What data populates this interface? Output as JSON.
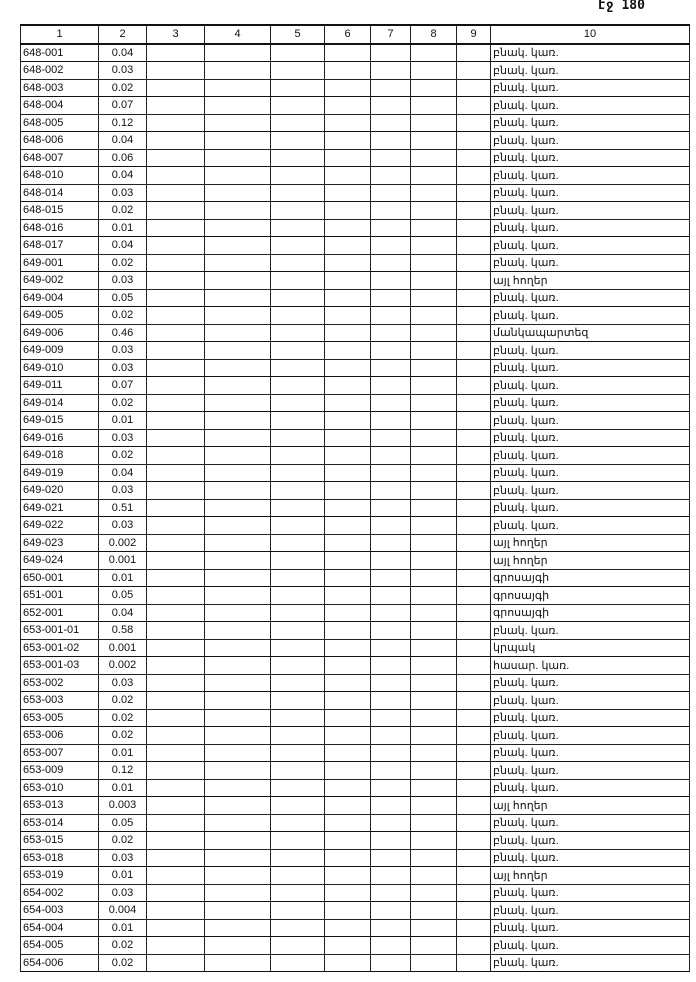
{
  "page_number": "էջ 180",
  "columns": [
    "1",
    "2",
    "3",
    "4",
    "5",
    "6",
    "7",
    "8",
    "9",
    "10"
  ],
  "rows": [
    [
      "648-001",
      "0.04",
      "բնակ. կառ."
    ],
    [
      "648-002",
      "0.03",
      "բնակ. կառ."
    ],
    [
      "648-003",
      "0.02",
      "բնակ. կառ."
    ],
    [
      "648-004",
      "0.07",
      "բնակ. կառ."
    ],
    [
      "648-005",
      "0.12",
      "բնակ. կառ."
    ],
    [
      "648-006",
      "0.04",
      "բնակ. կառ."
    ],
    [
      "648-007",
      "0.06",
      "բնակ. կառ."
    ],
    [
      "648-010",
      "0.04",
      "բնակ. կառ."
    ],
    [
      "648-014",
      "0.03",
      "բնակ. կառ."
    ],
    [
      "648-015",
      "0.02",
      "բնակ. կառ."
    ],
    [
      "648-016",
      "0.01",
      "բնակ. կառ."
    ],
    [
      "648-017",
      "0.04",
      "բնակ. կառ."
    ],
    [
      "649-001",
      "0.02",
      "բնակ. կառ."
    ],
    [
      "649-002",
      "0.03",
      "այլ հողեր"
    ],
    [
      "649-004",
      "0.05",
      "բնակ. կառ."
    ],
    [
      "649-005",
      "0.02",
      "բնակ. կառ."
    ],
    [
      "649-006",
      "0.46",
      "մանկապարտեզ"
    ],
    [
      "649-009",
      "0.03",
      "բնակ. կառ."
    ],
    [
      "649-010",
      "0.03",
      "բնակ. կառ."
    ],
    [
      "649-011",
      "0.07",
      "բնակ. կառ."
    ],
    [
      "649-014",
      "0.02",
      "բնակ. կառ."
    ],
    [
      "649-015",
      "0.01",
      "բնակ. կառ."
    ],
    [
      "649-016",
      "0.03",
      "բնակ. կառ."
    ],
    [
      "649-018",
      "0.02",
      "բնակ. կառ."
    ],
    [
      "649-019",
      "0.04",
      "բնակ. կառ."
    ],
    [
      "649-020",
      "0.03",
      "բնակ. կառ."
    ],
    [
      "649-021",
      "0.51",
      "բնակ. կառ."
    ],
    [
      "649-022",
      "0.03",
      "բնակ. կառ."
    ],
    [
      "649-023",
      "0.002",
      "այլ հողեր"
    ],
    [
      "649-024",
      "0.001",
      "այլ հողեր"
    ],
    [
      "650-001",
      "0.01",
      "գրոսայգի"
    ],
    [
      "651-001",
      "0.05",
      "գրոսայգի"
    ],
    [
      "652-001",
      "0.04",
      "գրոսայգի"
    ],
    [
      "653-001-01",
      "0.58",
      "բնակ. կառ."
    ],
    [
      "653-001-02",
      "0.001",
      "կրպակ"
    ],
    [
      "653-001-03",
      "0.002",
      "հասար. կառ."
    ],
    [
      "653-002",
      "0.03",
      "բնակ. կառ."
    ],
    [
      "653-003",
      "0.02",
      "բնակ. կառ."
    ],
    [
      "653-005",
      "0.02",
      "բնակ. կառ."
    ],
    [
      "653-006",
      "0.02",
      "բնակ. կառ."
    ],
    [
      "653-007",
      "0.01",
      "բնակ. կառ."
    ],
    [
      "653-009",
      "0.12",
      "բնակ. կառ."
    ],
    [
      "653-010",
      "0.01",
      "բնակ. կառ."
    ],
    [
      "653-013",
      "0.003",
      "այլ հողեր"
    ],
    [
      "653-014",
      "0.05",
      "բնակ. կառ."
    ],
    [
      "653-015",
      "0.02",
      "բնակ. կառ."
    ],
    [
      "653-018",
      "0.03",
      "բնակ. կառ."
    ],
    [
      "653-019",
      "0.01",
      "այլ հողեր"
    ],
    [
      "654-002",
      "0.03",
      "բնակ. կառ."
    ],
    [
      "654-003",
      "0.004",
      "բնակ. կառ."
    ],
    [
      "654-004",
      "0.01",
      "բնակ. կառ."
    ],
    [
      "654-005",
      "0.02",
      "բնակ. կառ."
    ],
    [
      "654-006",
      "0.02",
      "բնակ. կառ."
    ]
  ]
}
